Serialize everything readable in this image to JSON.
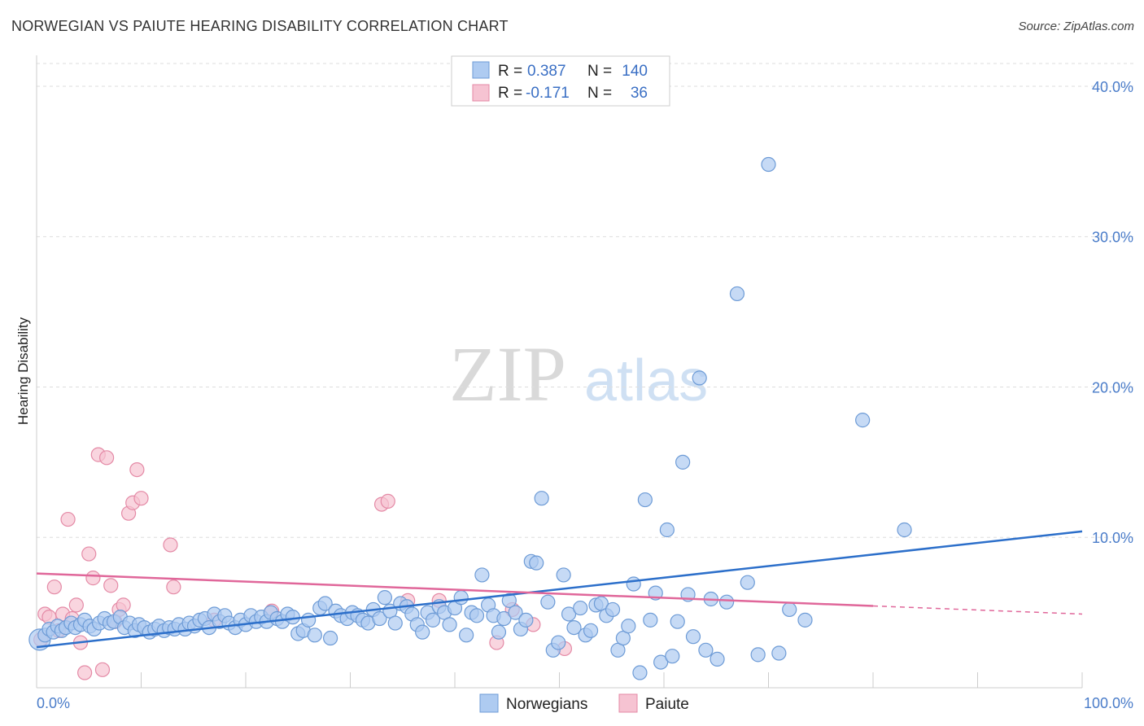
{
  "title": "NORWEGIAN VS PAIUTE HEARING DISABILITY CORRELATION CHART",
  "source": "Source: ZipAtlas.com",
  "watermark": {
    "zip": "ZIP",
    "atlas": "atlas"
  },
  "colors": {
    "blue_fill": "#aecbf1",
    "blue_stroke": "#6d9bd6",
    "blue_line": "#2c6fca",
    "pink_fill": "#f6c3d2",
    "pink_stroke": "#e48aa6",
    "pink_line": "#e0679a",
    "tick": "#4a7cc9",
    "grid": "#dddddd"
  },
  "legend": {
    "rows": [
      {
        "r_label": "R =",
        "r_value": "0.387",
        "n_label": "N =",
        "n_value": "140"
      },
      {
        "r_label": "R =",
        "r_value": "-0.171",
        "n_label": "N =",
        "n_value": "36"
      }
    ]
  },
  "chart_data": {
    "type": "scatter",
    "title": "NORWEGIAN VS PAIUTE HEARING DISABILITY CORRELATION CHART",
    "xlabel": "",
    "ylabel": "Hearing Disability",
    "xlim": [
      0,
      100
    ],
    "ylim": [
      0,
      42
    ],
    "x_tick_labels": [
      "0.0%",
      "100.0%"
    ],
    "y_ticks": [
      10,
      20,
      30,
      40
    ],
    "y_tick_labels": [
      "10.0%",
      "20.0%",
      "30.0%",
      "40.0%"
    ],
    "legend_position": "top-center",
    "series": [
      {
        "name": "Norwegians",
        "color": "#aecbf1",
        "trend": {
          "x": [
            0,
            100
          ],
          "y": [
            2.7,
            10.4
          ]
        },
        "points": [
          {
            "x": 0.3,
            "y": 3.2,
            "s": "large"
          },
          {
            "x": 0.8,
            "y": 3.5
          },
          {
            "x": 1.2,
            "y": 3.9
          },
          {
            "x": 1.6,
            "y": 3.7
          },
          {
            "x": 2.0,
            "y": 4.1
          },
          {
            "x": 2.4,
            "y": 3.8
          },
          {
            "x": 2.8,
            "y": 4.0
          },
          {
            "x": 3.3,
            "y": 4.3
          },
          {
            "x": 3.7,
            "y": 4.0
          },
          {
            "x": 4.2,
            "y": 4.2
          },
          {
            "x": 4.6,
            "y": 4.5
          },
          {
            "x": 5.1,
            "y": 4.1
          },
          {
            "x": 5.5,
            "y": 3.9
          },
          {
            "x": 6.0,
            "y": 4.3
          },
          {
            "x": 6.5,
            "y": 4.6
          },
          {
            "x": 7.0,
            "y": 4.3
          },
          {
            "x": 7.4,
            "y": 4.4
          },
          {
            "x": 8.0,
            "y": 4.7
          },
          {
            "x": 8.4,
            "y": 4.0
          },
          {
            "x": 8.9,
            "y": 4.3
          },
          {
            "x": 9.4,
            "y": 3.8
          },
          {
            "x": 9.8,
            "y": 4.2
          },
          {
            "x": 10.3,
            "y": 4.0
          },
          {
            "x": 10.8,
            "y": 3.7
          },
          {
            "x": 11.3,
            "y": 3.9
          },
          {
            "x": 11.7,
            "y": 4.1
          },
          {
            "x": 12.2,
            "y": 3.8
          },
          {
            "x": 12.7,
            "y": 4.0
          },
          {
            "x": 13.2,
            "y": 3.9
          },
          {
            "x": 13.6,
            "y": 4.2
          },
          {
            "x": 14.2,
            "y": 3.9
          },
          {
            "x": 14.6,
            "y": 4.3
          },
          {
            "x": 15.1,
            "y": 4.1
          },
          {
            "x": 15.6,
            "y": 4.5
          },
          {
            "x": 16.1,
            "y": 4.6
          },
          {
            "x": 16.5,
            "y": 4.0
          },
          {
            "x": 17.0,
            "y": 4.9
          },
          {
            "x": 17.5,
            "y": 4.4
          },
          {
            "x": 18.0,
            "y": 4.8
          },
          {
            "x": 18.4,
            "y": 4.3
          },
          {
            "x": 19.0,
            "y": 4.0
          },
          {
            "x": 19.5,
            "y": 4.5
          },
          {
            "x": 20.0,
            "y": 4.2
          },
          {
            "x": 20.5,
            "y": 4.8
          },
          {
            "x": 21.0,
            "y": 4.4
          },
          {
            "x": 21.5,
            "y": 4.7
          },
          {
            "x": 22.0,
            "y": 4.4
          },
          {
            "x": 22.4,
            "y": 5.0
          },
          {
            "x": 23.0,
            "y": 4.6
          },
          {
            "x": 23.5,
            "y": 4.4
          },
          {
            "x": 24.0,
            "y": 4.9
          },
          {
            "x": 24.5,
            "y": 4.7
          },
          {
            "x": 25.0,
            "y": 3.6
          },
          {
            "x": 25.5,
            "y": 3.8
          },
          {
            "x": 26.0,
            "y": 4.5
          },
          {
            "x": 26.6,
            "y": 3.5
          },
          {
            "x": 27.1,
            "y": 5.3
          },
          {
            "x": 27.6,
            "y": 5.6
          },
          {
            "x": 28.1,
            "y": 3.3
          },
          {
            "x": 28.6,
            "y": 5.1
          },
          {
            "x": 29.1,
            "y": 4.8
          },
          {
            "x": 29.7,
            "y": 4.6
          },
          {
            "x": 30.2,
            "y": 5.0
          },
          {
            "x": 30.7,
            "y": 4.8
          },
          {
            "x": 31.2,
            "y": 4.5
          },
          {
            "x": 31.7,
            "y": 4.3
          },
          {
            "x": 32.2,
            "y": 5.2
          },
          {
            "x": 32.8,
            "y": 4.6
          },
          {
            "x": 33.3,
            "y": 6.0
          },
          {
            "x": 33.8,
            "y": 5.1
          },
          {
            "x": 34.3,
            "y": 4.3
          },
          {
            "x": 34.8,
            "y": 5.6
          },
          {
            "x": 35.4,
            "y": 5.4
          },
          {
            "x": 35.9,
            "y": 4.9
          },
          {
            "x": 36.4,
            "y": 4.2
          },
          {
            "x": 36.9,
            "y": 3.7
          },
          {
            "x": 37.4,
            "y": 5.0
          },
          {
            "x": 37.9,
            "y": 4.5
          },
          {
            "x": 38.5,
            "y": 5.4
          },
          {
            "x": 39.0,
            "y": 5.0
          },
          {
            "x": 39.5,
            "y": 4.2
          },
          {
            "x": 40.0,
            "y": 5.3
          },
          {
            "x": 40.6,
            "y": 6.0
          },
          {
            "x": 41.1,
            "y": 3.5
          },
          {
            "x": 41.6,
            "y": 5.0
          },
          {
            "x": 42.1,
            "y": 4.8
          },
          {
            "x": 42.6,
            "y": 7.5
          },
          {
            "x": 43.2,
            "y": 5.5
          },
          {
            "x": 43.7,
            "y": 4.8
          },
          {
            "x": 44.2,
            "y": 3.7
          },
          {
            "x": 44.7,
            "y": 4.6
          },
          {
            "x": 45.2,
            "y": 5.8
          },
          {
            "x": 45.8,
            "y": 5.0
          },
          {
            "x": 46.3,
            "y": 3.9
          },
          {
            "x": 46.8,
            "y": 4.5
          },
          {
            "x": 47.3,
            "y": 8.4
          },
          {
            "x": 47.8,
            "y": 8.3
          },
          {
            "x": 48.3,
            "y": 12.6
          },
          {
            "x": 48.9,
            "y": 5.7
          },
          {
            "x": 49.4,
            "y": 2.5
          },
          {
            "x": 49.9,
            "y": 3.0
          },
          {
            "x": 50.4,
            "y": 7.5
          },
          {
            "x": 50.9,
            "y": 4.9
          },
          {
            "x": 51.4,
            "y": 4.0
          },
          {
            "x": 52.0,
            "y": 5.3
          },
          {
            "x": 52.5,
            "y": 3.5
          },
          {
            "x": 53.0,
            "y": 3.8
          },
          {
            "x": 53.5,
            "y": 5.5
          },
          {
            "x": 54.0,
            "y": 5.6
          },
          {
            "x": 54.5,
            "y": 4.8
          },
          {
            "x": 55.1,
            "y": 5.2
          },
          {
            "x": 55.6,
            "y": 2.5
          },
          {
            "x": 56.1,
            "y": 3.3
          },
          {
            "x": 56.6,
            "y": 4.1
          },
          {
            "x": 57.1,
            "y": 6.9
          },
          {
            "x": 57.7,
            "y": 1.0
          },
          {
            "x": 58.2,
            "y": 12.5
          },
          {
            "x": 58.7,
            "y": 4.5
          },
          {
            "x": 59.2,
            "y": 6.3
          },
          {
            "x": 59.7,
            "y": 1.7
          },
          {
            "x": 60.3,
            "y": 10.5
          },
          {
            "x": 60.8,
            "y": 2.1
          },
          {
            "x": 61.3,
            "y": 4.4
          },
          {
            "x": 61.8,
            "y": 15.0
          },
          {
            "x": 62.3,
            "y": 6.2
          },
          {
            "x": 62.8,
            "y": 3.4
          },
          {
            "x": 63.4,
            "y": 20.6
          },
          {
            "x": 64.0,
            "y": 2.5
          },
          {
            "x": 64.5,
            "y": 5.9
          },
          {
            "x": 65.1,
            "y": 1.9
          },
          {
            "x": 66.0,
            "y": 5.7
          },
          {
            "x": 67.0,
            "y": 26.2
          },
          {
            "x": 68.0,
            "y": 7.0
          },
          {
            "x": 69.0,
            "y": 2.2
          },
          {
            "x": 70.0,
            "y": 34.8
          },
          {
            "x": 71.0,
            "y": 2.3
          },
          {
            "x": 72.0,
            "y": 5.2
          },
          {
            "x": 73.5,
            "y": 4.5
          },
          {
            "x": 79.0,
            "y": 17.8
          },
          {
            "x": 83.0,
            "y": 10.5
          }
        ]
      },
      {
        "name": "Paiute",
        "color": "#f6c3d2",
        "trend": {
          "x": [
            0,
            100
          ],
          "y": [
            7.6,
            4.9
          ]
        },
        "points": [
          {
            "x": 0.4,
            "y": 3.2
          },
          {
            "x": 0.8,
            "y": 4.9
          },
          {
            "x": 1.2,
            "y": 4.7
          },
          {
            "x": 1.7,
            "y": 6.7
          },
          {
            "x": 2.1,
            "y": 3.8
          },
          {
            "x": 2.5,
            "y": 4.9
          },
          {
            "x": 3.0,
            "y": 11.2
          },
          {
            "x": 3.4,
            "y": 4.6
          },
          {
            "x": 3.8,
            "y": 5.5
          },
          {
            "x": 4.2,
            "y": 3.0
          },
          {
            "x": 4.6,
            "y": 1.0
          },
          {
            "x": 5.0,
            "y": 8.9
          },
          {
            "x": 5.4,
            "y": 7.3
          },
          {
            "x": 5.9,
            "y": 15.5
          },
          {
            "x": 6.3,
            "y": 1.2
          },
          {
            "x": 6.7,
            "y": 15.3
          },
          {
            "x": 7.1,
            "y": 6.8
          },
          {
            "x": 7.5,
            "y": 4.4
          },
          {
            "x": 7.9,
            "y": 5.2
          },
          {
            "x": 8.3,
            "y": 5.5
          },
          {
            "x": 8.8,
            "y": 11.6
          },
          {
            "x": 9.2,
            "y": 12.3
          },
          {
            "x": 9.6,
            "y": 14.5
          },
          {
            "x": 10.0,
            "y": 12.6
          },
          {
            "x": 12.8,
            "y": 9.5
          },
          {
            "x": 13.1,
            "y": 6.7
          },
          {
            "x": 17.0,
            "y": 4.5
          },
          {
            "x": 22.5,
            "y": 5.1
          },
          {
            "x": 33.0,
            "y": 12.2
          },
          {
            "x": 33.6,
            "y": 12.4
          },
          {
            "x": 35.5,
            "y": 5.8
          },
          {
            "x": 38.5,
            "y": 5.8
          },
          {
            "x": 44.0,
            "y": 3.0
          },
          {
            "x": 45.5,
            "y": 5.2
          },
          {
            "x": 47.5,
            "y": 4.2
          },
          {
            "x": 50.5,
            "y": 2.6
          }
        ]
      }
    ]
  }
}
